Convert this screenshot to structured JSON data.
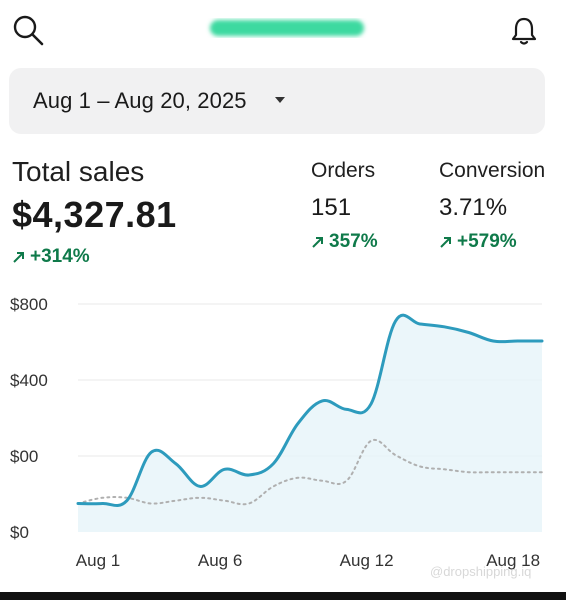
{
  "header": {
    "search_icon": "search-icon",
    "bell_icon": "bell-icon",
    "logo_color": "#3dd9a0"
  },
  "date_range": {
    "label": "Aug 1 – Aug 20, 2025",
    "caret_icon": "caret-down-icon"
  },
  "metrics": {
    "total_sales": {
      "title": "Total sales",
      "value": "$4,327.81",
      "change": "+314%",
      "change_icon": "arrow-up-right-icon"
    },
    "orders": {
      "title": "Orders",
      "value": "151",
      "change": "357%",
      "change_icon": "arrow-up-right-icon"
    },
    "conversion": {
      "title": "Conversion",
      "value": "3.71%",
      "change": "+579%",
      "change_icon": "arrow-up-right-icon"
    }
  },
  "colors": {
    "accent_line": "#2d9bbd",
    "area_fill": "#e6f4f9",
    "compare_line": "#b0b0b0",
    "positive": "#0f7a4a",
    "grid": "#e8e8e8"
  },
  "chart_data": {
    "type": "line",
    "y_tick_labels": [
      "$800",
      "$400",
      "$00",
      "$0"
    ],
    "x_tick_labels": [
      "Aug 1",
      "Aug 6",
      "Aug 12",
      "Aug 18"
    ],
    "x_tick_days": [
      1,
      6,
      12,
      18
    ],
    "x": [
      1,
      2,
      3,
      4,
      5,
      6,
      7,
      8,
      9,
      10,
      11,
      12,
      13,
      14,
      15,
      16,
      17,
      18,
      19,
      20
    ],
    "ylim": [
      0,
      800
    ],
    "grid": true,
    "series": [
      {
        "values": [
          100,
          100,
          110,
          280,
          240,
          160,
          220,
          200,
          240,
          380,
          460,
          430,
          450,
          740,
          730,
          720,
          700,
          670,
          670,
          670
        ]
      },
      {
        "values": [
          100,
          120,
          120,
          100,
          110,
          120,
          110,
          100,
          160,
          190,
          180,
          180,
          320,
          270,
          230,
          220,
          210,
          210,
          210,
          210
        ]
      }
    ],
    "watermark": "@dropshipping.iq"
  }
}
